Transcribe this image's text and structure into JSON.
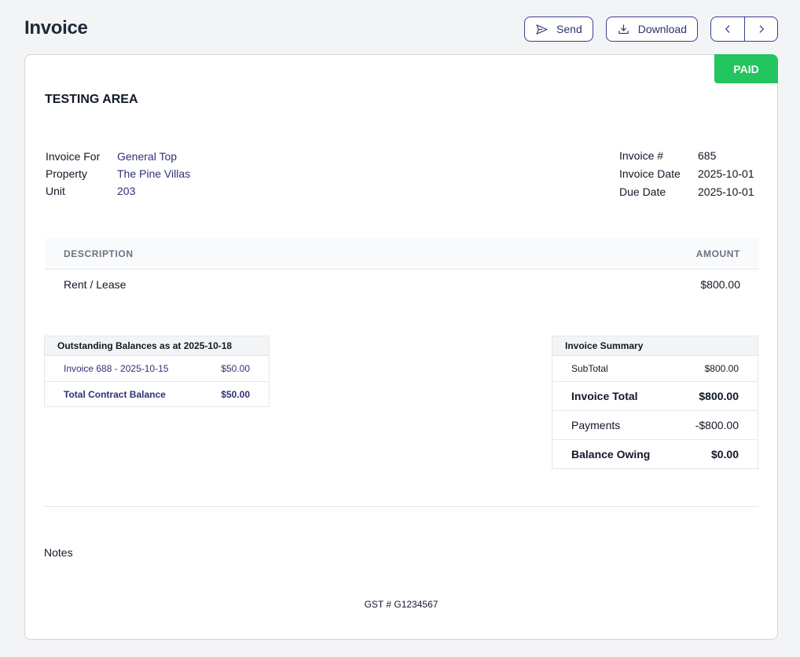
{
  "header": {
    "title": "Invoice",
    "send_label": "Send",
    "download_label": "Download"
  },
  "colors": {
    "accent": "#2e3272",
    "paid": "#22c55e"
  },
  "invoice": {
    "status": "PAID",
    "company": "TESTING AREA",
    "left_meta": [
      {
        "label": "Invoice For",
        "value": "General Top"
      },
      {
        "label": "Property",
        "value": "The Pine Villas"
      },
      {
        "label": "Unit",
        "value": "203"
      }
    ],
    "right_meta": [
      {
        "label": "Invoice #",
        "value": "685"
      },
      {
        "label": "Invoice Date",
        "value": "2025-10-01"
      },
      {
        "label": "Due Date",
        "value": "2025-10-01"
      }
    ],
    "items_table": {
      "headers": {
        "description": "DESCRIPTION",
        "amount": "AMOUNT"
      },
      "rows": [
        {
          "description": "Rent / Lease",
          "amount": "$800.00"
        }
      ]
    },
    "outstanding": {
      "title": "Outstanding Balances as at 2025-10-18",
      "rows": [
        {
          "label": "Invoice 688 - 2025-10-15",
          "amount": "$50.00"
        }
      ],
      "total": {
        "label": "Total Contract Balance",
        "amount": "$50.00"
      }
    },
    "summary": {
      "title": "Invoice Summary",
      "subtotal": {
        "label": "SubTotal",
        "amount": "$800.00"
      },
      "total": {
        "label": "Invoice Total",
        "amount": "$800.00"
      },
      "payments": {
        "label": "Payments",
        "amount": "-$800.00"
      },
      "balance": {
        "label": "Balance Owing",
        "amount": "$0.00"
      }
    },
    "notes_label": "Notes",
    "gst": "GST # G1234567"
  },
  "icons": {
    "send": "send-icon",
    "download": "download-icon",
    "prev": "chevron-left-icon",
    "next": "chevron-right-icon"
  }
}
